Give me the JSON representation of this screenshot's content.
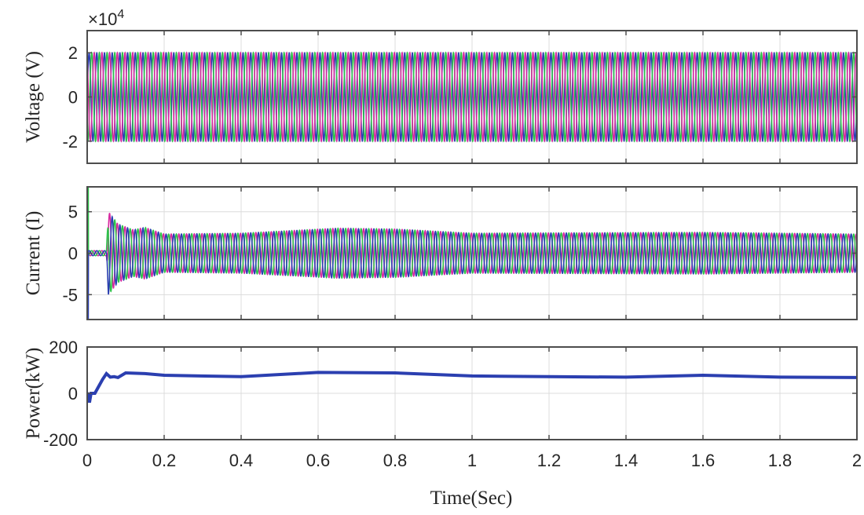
{
  "chart_data": [
    {
      "type": "line",
      "ylabel": "Voltage (V)",
      "exponent_label": "×10",
      "exponent_power": "4",
      "xlim": [
        0,
        2
      ],
      "ylim": [
        -3,
        3
      ],
      "yticks": [
        "2",
        "0",
        "-2"
      ],
      "ytick_values": [
        2,
        0,
        -2
      ],
      "grid": true,
      "description_units": "y in units of 10^4 V",
      "series": [
        {
          "phase": 0,
          "color": "#2b3fb0",
          "amplitude": 2,
          "frequency_hz": 50
        },
        {
          "phase": 120,
          "color": "#2ec24a",
          "amplitude": 2,
          "frequency_hz": 50
        },
        {
          "phase": 240,
          "color": "#d62aa0",
          "amplitude": 2,
          "frequency_hz": 50
        }
      ]
    },
    {
      "type": "line",
      "ylabel": "Current (I)",
      "xlim": [
        0,
        2
      ],
      "ylim": [
        -8,
        8
      ],
      "yticks": [
        "5",
        "0",
        "-5"
      ],
      "ytick_values": [
        5,
        0,
        -5
      ],
      "grid": true,
      "amplitude_envelope": {
        "t": [
          0,
          0.003,
          0.05,
          0.055,
          0.08,
          0.12,
          0.15,
          0.2,
          0.4,
          0.65,
          0.8,
          1.0,
          1.6,
          2.0
        ],
        "amp": [
          8,
          0.3,
          0.3,
          5,
          3.5,
          2.8,
          3.1,
          2.3,
          2.4,
          3.0,
          2.9,
          2.4,
          2.5,
          2.3
        ]
      },
      "series": [
        {
          "phase": 240,
          "color": "#d62aa0"
        },
        {
          "phase": 120,
          "color": "#2ec24a"
        },
        {
          "phase": 0,
          "color": "#2b3fb0"
        }
      ]
    },
    {
      "type": "line",
      "ylabel": "Power(kW)",
      "xlabel": "Time(Sec)",
      "xlim": [
        0,
        2
      ],
      "ylim": [
        -200,
        200
      ],
      "yticks": [
        "200",
        "0",
        "-200"
      ],
      "ytick_values": [
        200,
        0,
        -200
      ],
      "xticks": [
        "0",
        "0.2",
        "0.4",
        "0.6",
        "0.8",
        "1",
        "1.2",
        "1.4",
        "1.6",
        "1.8",
        "2"
      ],
      "xtick_values": [
        0,
        0.2,
        0.4,
        0.6,
        0.8,
        1,
        1.2,
        1.4,
        1.6,
        1.8,
        2
      ],
      "grid": true,
      "series": [
        {
          "color": "#2b3fb0",
          "x": [
            0,
            0.004,
            0.006,
            0.008,
            0.01,
            0.02,
            0.03,
            0.04,
            0.05,
            0.06,
            0.07,
            0.08,
            0.1,
            0.15,
            0.2,
            0.4,
            0.6,
            0.8,
            1.0,
            1.2,
            1.4,
            1.6,
            1.8,
            2.0
          ],
          "y": [
            0,
            -5,
            -40,
            -20,
            0,
            0,
            30,
            60,
            85,
            70,
            72,
            68,
            88,
            85,
            78,
            72,
            90,
            88,
            75,
            72,
            70,
            78,
            70,
            68
          ]
        }
      ]
    }
  ]
}
